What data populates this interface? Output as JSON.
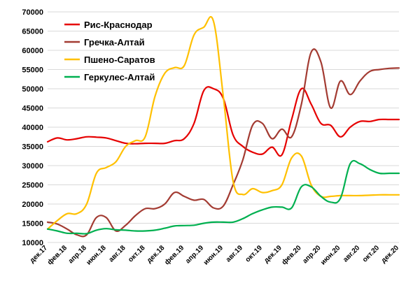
{
  "chart_data": {
    "type": "line",
    "title": "",
    "xlabel": "",
    "ylabel": "",
    "ylim": [
      10000,
      70000
    ],
    "y_ticks": [
      10000,
      15000,
      20000,
      25000,
      30000,
      35000,
      40000,
      45000,
      50000,
      55000,
      60000,
      65000,
      70000
    ],
    "grid": true,
    "legend_position": "top-left",
    "x": [
      "дек.17",
      "янв.18",
      "фев.18",
      "мар.18",
      "апр.18",
      "май.18",
      "июн.18",
      "июл.18",
      "авг.18",
      "сен.18",
      "окт.18",
      "ноя.18",
      "дек.18",
      "янв.19",
      "фев.19",
      "мар.19",
      "апр.19",
      "май.19",
      "июн.19",
      "июл.19",
      "авг.19",
      "сен.19",
      "окт.19",
      "ноя.19",
      "дек.19",
      "янв.20",
      "фев.20",
      "мар.20",
      "апр.20",
      "май.20",
      "июн.20",
      "июл.20",
      "авг.20",
      "сен.20",
      "окт.20",
      "ноя.20",
      "дек.20"
    ],
    "x_tick_labels": [
      "дек.17",
      "фев.18",
      "апр.18",
      "июн.18",
      "авг.18",
      "окт.18",
      "дек.18",
      "фев.19",
      "апр.19",
      "июн.19",
      "авг.19",
      "окт.19",
      "дек.19",
      "фев.20",
      "апр.20",
      "июн.20",
      "авг.20",
      "окт.20",
      "дек.20"
    ],
    "series": [
      {
        "name": "Рис-Краснодар",
        "color": "#e60000",
        "values": [
          36200,
          37200,
          36700,
          37000,
          37500,
          37400,
          37200,
          36500,
          35800,
          35700,
          35800,
          35800,
          35800,
          36500,
          37000,
          41000,
          49500,
          50000,
          47500,
          38000,
          35000,
          33500,
          33000,
          34800,
          32800,
          42000,
          50000,
          46000,
          41000,
          40500,
          37500,
          40000,
          41500,
          41500,
          42000,
          42000,
          42000
        ]
      },
      {
        "name": "Гречка-Алтай",
        "color": "#a33b32",
        "values": [
          15300,
          14800,
          13500,
          12000,
          12000,
          16500,
          16500,
          13000,
          14500,
          17000,
          18800,
          18800,
          20000,
          23000,
          22000,
          21000,
          21200,
          19000,
          19500,
          25000,
          31500,
          40500,
          41000,
          37000,
          39500,
          37500,
          46000,
          59500,
          57000,
          45000,
          52000,
          48500,
          52000,
          54500,
          55000,
          55300,
          55400
        ]
      },
      {
        "name": "Пшено-Саратов",
        "color": "#ffc000",
        "values": [
          13500,
          15700,
          17500,
          17500,
          20000,
          28000,
          29500,
          31000,
          35000,
          36500,
          37500,
          48000,
          54000,
          55500,
          56000,
          64000,
          66000,
          67500,
          48000,
          26000,
          22500,
          24000,
          23000,
          23500,
          25000,
          32000,
          32500,
          25000,
          22000,
          22000,
          22200,
          22200,
          22200,
          22300,
          22400,
          22400,
          22400
        ]
      },
      {
        "name": "Геркулес-Алтай",
        "color": "#00b050",
        "values": [
          13500,
          13000,
          12400,
          12400,
          12300,
          13200,
          13600,
          13300,
          13200,
          13000,
          13000,
          13200,
          13700,
          14300,
          14400,
          14500,
          15000,
          15300,
          15300,
          15300,
          16200,
          17500,
          18500,
          19200,
          19200,
          19000,
          24500,
          24500,
          22000,
          20500,
          21500,
          30500,
          30500,
          29000,
          28000,
          28000,
          28000
        ]
      }
    ]
  }
}
